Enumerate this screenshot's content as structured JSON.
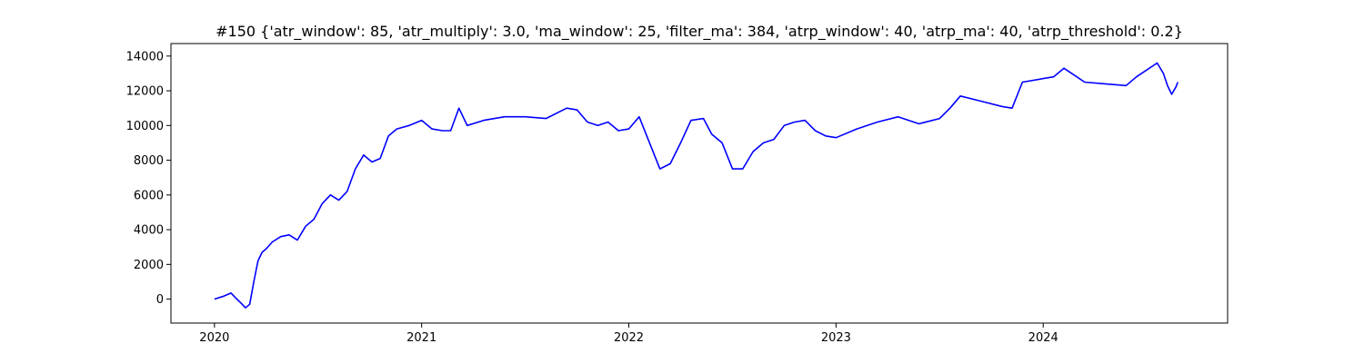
{
  "chart_data": {
    "type": "line",
    "title": "#150 {'atr_window': 85, 'atr_multiply': 3.0, 'ma_window': 25, 'filter_ma': 384, 'atrp_window': 40, 'atrp_ma': 40, 'atrp_threshold': 0.2}",
    "xlabel": "",
    "ylabel": "",
    "x_ticks": [
      "2020",
      "2021",
      "2022",
      "2023",
      "2024"
    ],
    "x_tick_values": [
      2020.0,
      2021.0,
      2022.0,
      2023.0,
      2024.0
    ],
    "y_ticks": [
      0,
      2000,
      4000,
      6000,
      8000,
      10000,
      12000,
      14000
    ],
    "xlim": [
      2019.79,
      2024.89
    ],
    "ylim": [
      -1380,
      14720
    ],
    "grid": false,
    "series": [
      {
        "name": "",
        "color": "#0000ff",
        "x": [
          2020.0,
          2020.04,
          2020.08,
          2020.1,
          2020.13,
          2020.15,
          2020.17,
          2020.19,
          2020.21,
          2020.23,
          2020.25,
          2020.28,
          2020.32,
          2020.36,
          2020.4,
          2020.44,
          2020.48,
          2020.52,
          2020.56,
          2020.6,
          2020.64,
          2020.68,
          2020.72,
          2020.76,
          2020.8,
          2020.84,
          2020.88,
          2020.94,
          2021.0,
          2021.05,
          2021.1,
          2021.14,
          2021.18,
          2021.22,
          2021.3,
          2021.4,
          2021.5,
          2021.6,
          2021.7,
          2021.75,
          2021.8,
          2021.85,
          2021.9,
          2021.95,
          2022.0,
          2022.05,
          2022.1,
          2022.15,
          2022.2,
          2022.25,
          2022.3,
          2022.36,
          2022.4,
          2022.45,
          2022.5,
          2022.55,
          2022.6,
          2022.65,
          2022.7,
          2022.75,
          2022.8,
          2022.85,
          2022.9,
          2022.95,
          2023.0,
          2023.1,
          2023.2,
          2023.3,
          2023.4,
          2023.5,
          2023.55,
          2023.6,
          2023.7,
          2023.8,
          2023.85,
          2023.9,
          2024.0,
          2024.05,
          2024.1,
          2024.15,
          2024.2,
          2024.3,
          2024.4,
          2024.45,
          2024.5,
          2024.55,
          2024.58,
          2024.6,
          2024.62,
          2024.64,
          2024.65
        ],
        "y": [
          0,
          150,
          350,
          100,
          -250,
          -500,
          -300,
          1000,
          2200,
          2700,
          2900,
          3300,
          3600,
          3700,
          3400,
          4200,
          4600,
          5500,
          6000,
          5700,
          6200,
          7500,
          8300,
          7900,
          8100,
          9400,
          9800,
          10000,
          10300,
          9800,
          9700,
          9700,
          11000,
          10000,
          10300,
          10500,
          10500,
          10400,
          11000,
          10900,
          10200,
          10000,
          10200,
          9700,
          9800,
          10500,
          9000,
          7500,
          7800,
          9000,
          10300,
          10400,
          9500,
          9000,
          7500,
          7500,
          8500,
          9000,
          9200,
          10000,
          10200,
          10300,
          9700,
          9400,
          9300,
          9800,
          10200,
          10500,
          10100,
          10400,
          11000,
          11700,
          11400,
          11100,
          11000,
          12500,
          12700,
          12800,
          13300,
          12900,
          12500,
          12400,
          12300,
          12800,
          13200,
          13600,
          13000,
          12300,
          11800,
          12200,
          12500
        ]
      }
    ]
  }
}
